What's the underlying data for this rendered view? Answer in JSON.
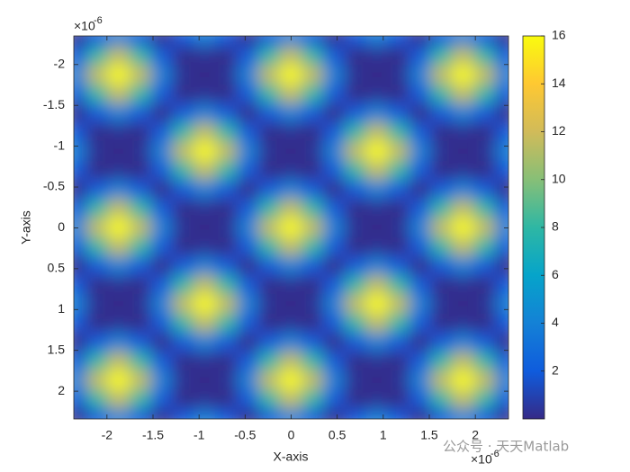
{
  "chart_data": {
    "type": "heatmap",
    "x_label": "X-axis",
    "y_label": "Y-axis",
    "x_multiplier": "×10",
    "x_exponent": "-6",
    "y_multiplier": "×10",
    "y_exponent": "-6",
    "watermark": "公众号 · 天天Matlab",
    "x": [
      -2.3375e-06,
      -2.10375e-06,
      -1.87e-06,
      -1.63625e-06,
      -1.4025e-06,
      -1.16875e-06,
      -9.35e-07,
      -7.0125e-07,
      -4.675e-07,
      -2.3375e-07,
      0,
      2.3375e-07,
      4.675e-07,
      7.0125e-07,
      9.35e-07,
      1.16875e-06,
      1.4025e-06,
      1.63625e-06,
      1.87e-06,
      2.10375e-06,
      2.3375e-06
    ],
    "y": [
      -2.3375e-06,
      -2.10375e-06,
      -1.87e-06,
      -1.63625e-06,
      -1.4025e-06,
      -1.16875e-06,
      -9.35e-07,
      -7.0125e-07,
      -4.675e-07,
      -2.3375e-07,
      0,
      2.3375e-07,
      4.675e-07,
      7.0125e-07,
      9.35e-07,
      1.16875e-06,
      1.4025e-06,
      1.63625e-06,
      1.87e-06,
      2.10375e-06,
      2.3375e-06
    ],
    "z": [
      [
        0,
        2,
        4,
        2,
        0,
        2,
        4,
        2,
        0,
        2,
        4,
        2,
        0,
        2,
        4,
        2,
        0,
        2,
        4,
        2,
        0
      ],
      [
        2,
        8,
        11.66,
        8,
        2,
        0,
        0.34,
        0,
        2,
        8,
        11.66,
        8,
        2,
        0,
        0.34,
        0,
        2,
        8,
        11.66,
        8,
        2
      ],
      [
        4,
        11.66,
        16,
        11.66,
        4,
        0.34,
        0,
        0.34,
        4,
        11.66,
        16,
        11.66,
        4,
        0.34,
        0,
        0.34,
        4,
        11.66,
        16,
        11.66,
        4
      ],
      [
        2,
        8,
        11.66,
        8,
        2,
        0,
        0.34,
        0,
        2,
        8,
        11.66,
        8,
        2,
        0,
        0.34,
        0,
        2,
        8,
        11.66,
        8,
        2
      ],
      [
        0,
        2,
        4,
        2,
        0,
        2,
        4,
        2,
        0,
        2,
        4,
        2,
        0,
        2,
        4,
        2,
        0,
        2,
        4,
        2,
        0
      ],
      [
        2,
        0,
        0.34,
        0,
        2,
        8,
        11.66,
        8,
        2,
        0,
        0.34,
        0,
        2,
        8,
        11.66,
        8,
        2,
        0,
        0.34,
        0,
        2
      ],
      [
        4,
        0.34,
        0,
        0.34,
        4,
        11.66,
        16,
        11.66,
        4,
        0.34,
        0,
        0.34,
        4,
        11.66,
        16,
        11.66,
        4,
        0.34,
        0,
        0.34,
        4
      ],
      [
        2,
        0,
        0.34,
        0,
        2,
        8,
        11.66,
        8,
        2,
        0,
        0.34,
        0,
        2,
        8,
        11.66,
        8,
        2,
        0,
        0.34,
        0,
        2
      ],
      [
        0,
        2,
        4,
        2,
        0,
        2,
        4,
        2,
        0,
        2,
        4,
        2,
        0,
        2,
        4,
        2,
        0,
        2,
        4,
        2,
        0
      ],
      [
        2,
        8,
        11.66,
        8,
        2,
        0,
        0.34,
        0,
        2,
        8,
        11.66,
        8,
        2,
        0,
        0.34,
        0,
        2,
        8,
        11.66,
        8,
        2
      ],
      [
        4,
        11.66,
        16,
        11.66,
        4,
        0.34,
        0,
        0.34,
        4,
        11.66,
        16,
        11.66,
        4,
        0.34,
        0,
        0.34,
        4,
        11.66,
        16,
        11.66,
        4
      ],
      [
        2,
        8,
        11.66,
        8,
        2,
        0,
        0.34,
        0,
        2,
        8,
        11.66,
        8,
        2,
        0,
        0.34,
        0,
        2,
        8,
        11.66,
        8,
        2
      ],
      [
        0,
        2,
        4,
        2,
        0,
        2,
        4,
        2,
        0,
        2,
        4,
        2,
        0,
        2,
        4,
        2,
        0,
        2,
        4,
        2,
        0
      ],
      [
        2,
        0,
        0.34,
        0,
        2,
        8,
        11.66,
        8,
        2,
        0,
        0.34,
        0,
        2,
        8,
        11.66,
        8,
        2,
        0,
        0.34,
        0,
        2
      ],
      [
        4,
        0.34,
        0,
        0.34,
        4,
        11.66,
        16,
        11.66,
        4,
        0.34,
        0,
        0.34,
        4,
        11.66,
        16,
        11.66,
        4,
        0.34,
        0,
        0.34,
        4
      ],
      [
        2,
        0,
        0.34,
        0,
        2,
        8,
        11.66,
        8,
        2,
        0,
        0.34,
        0,
        2,
        8,
        11.66,
        8,
        2,
        0,
        0.34,
        0,
        2
      ],
      [
        0,
        2,
        4,
        2,
        0,
        2,
        4,
        2,
        0,
        2,
        4,
        2,
        0,
        2,
        4,
        2,
        0,
        2,
        4,
        2,
        0
      ],
      [
        2,
        8,
        11.66,
        8,
        2,
        0,
        0.34,
        0,
        2,
        8,
        11.66,
        8,
        2,
        0,
        0.34,
        0,
        2,
        8,
        11.66,
        8,
        2
      ],
      [
        4,
        11.66,
        16,
        11.66,
        4,
        0.34,
        0,
        0.34,
        4,
        11.66,
        16,
        11.66,
        4,
        0.34,
        0,
        0.34,
        4,
        11.66,
        16,
        11.66,
        4
      ],
      [
        2,
        8,
        11.66,
        8,
        2,
        0,
        0.34,
        0,
        2,
        8,
        11.66,
        8,
        2,
        0,
        0.34,
        0,
        2,
        8,
        11.66,
        8,
        2
      ],
      [
        0,
        2,
        4,
        2,
        0,
        2,
        4,
        2,
        0,
        2,
        4,
        2,
        0,
        2,
        4,
        2,
        0,
        2,
        4,
        2,
        0
      ]
    ],
    "xlim": [
      -2.36e-06,
      2.36e-06
    ],
    "ylim": [
      -2.35e-06,
      2.34e-06
    ],
    "y_reversed": true,
    "xticks": [
      {
        "value": -2e-06,
        "label": "-2"
      },
      {
        "value": -1.5e-06,
        "label": "-1.5"
      },
      {
        "value": -1e-06,
        "label": "-1"
      },
      {
        "value": -5e-07,
        "label": "-0.5"
      },
      0,
      {
        "value": 5e-07,
        "label": "0.5"
      },
      {
        "value": 1e-06,
        "label": "1"
      },
      {
        "value": 1.5e-06,
        "label": "1.5"
      },
      {
        "value": 2e-06,
        "label": "2"
      }
    ],
    "yticks": [
      {
        "value": -2e-06,
        "label": "-2"
      },
      {
        "value": -1.5e-06,
        "label": "-1.5"
      },
      {
        "value": -1e-06,
        "label": "-1"
      },
      {
        "value": -5e-07,
        "label": "-0.5"
      },
      0,
      {
        "value": 5e-07,
        "label": "0.5"
      },
      {
        "value": 1e-06,
        "label": "1"
      },
      {
        "value": 1.5e-06,
        "label": "1.5"
      },
      {
        "value": 2e-06,
        "label": "2"
      }
    ],
    "clim": [
      0,
      16
    ],
    "cticks": [
      2,
      4,
      6,
      8,
      10,
      12,
      14,
      16
    ],
    "colormap": [
      "#352a87",
      "#0f5cdd",
      "#1481d6",
      "#06a4ca",
      "#2eb7a4",
      "#87bf77",
      "#d1bb59",
      "#fec832",
      "#f9fb0e"
    ]
  }
}
